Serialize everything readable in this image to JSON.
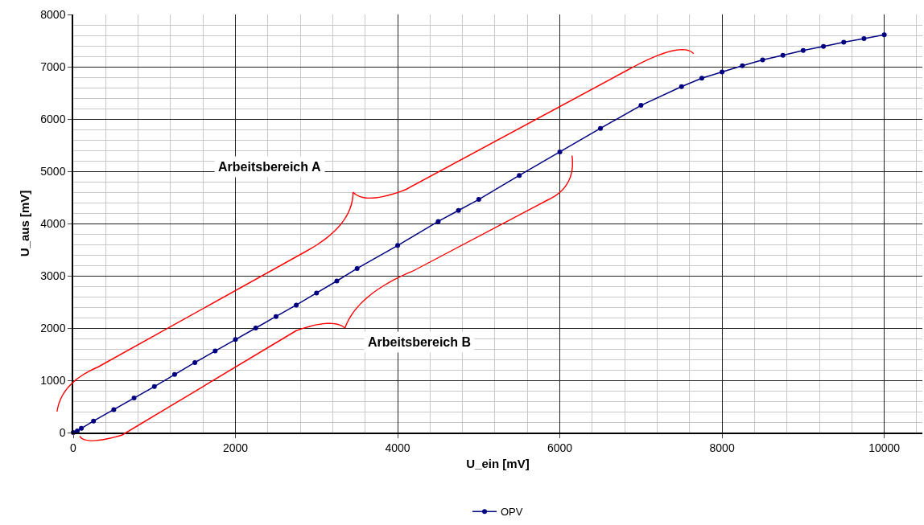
{
  "chart_data": {
    "type": "line",
    "xlabel": "U_ein [mV]",
    "ylabel": "U_aus [mV]",
    "x": [
      0,
      50,
      100,
      250,
      500,
      750,
      1000,
      1250,
      1500,
      1750,
      2000,
      2250,
      2500,
      2750,
      3000,
      3250,
      3500,
      4000,
      4500,
      4750,
      5000,
      5500,
      6000,
      6500,
      7000,
      7500,
      7750,
      8000,
      8250,
      8500,
      8750,
      9000,
      9250,
      9500,
      9750,
      10000
    ],
    "series": [
      {
        "name": "OPV",
        "color": "#000080",
        "values": [
          0,
          30,
          80,
          220,
          440,
          660,
          880,
          1110,
          1340,
          1560,
          1780,
          2000,
          2220,
          2440,
          2670,
          2900,
          3140,
          3580,
          4040,
          4250,
          4460,
          4920,
          5370,
          5820,
          6260,
          6620,
          6780,
          6900,
          7020,
          7130,
          7220,
          7310,
          7390,
          7470,
          7540,
          7610
        ]
      }
    ],
    "xlim": [
      0,
      10470
    ],
    "xticks": [
      0,
      2000,
      4000,
      6000,
      8000,
      10000
    ],
    "ylim": [
      0,
      8000
    ],
    "yticks": [
      0,
      1000,
      2000,
      3000,
      4000,
      5000,
      6000,
      7000,
      8000
    ],
    "annotations": [
      "Arbeitsbereich A",
      "Arbeitsbereich B"
    ],
    "grid": true,
    "legend": "bottom",
    "marker": "circle",
    "line_style": "solid"
  }
}
